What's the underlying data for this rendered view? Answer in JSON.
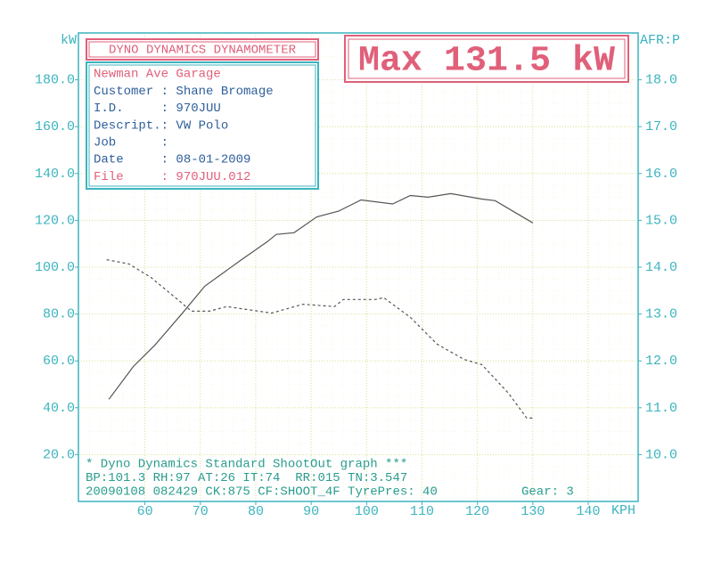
{
  "chart_data": {
    "type": "line",
    "title": "DYNO DYNAMICS DYNAMOMETER",
    "max_label": "Max 131.5 kW",
    "y_label": "kW",
    "y2_label": "AFR:P",
    "x_label": "KPH",
    "info": [
      "Newman Ave Garage",
      "Customer : Shane Bromage",
      "I.D.     : 970JUU",
      "Descript.: VW Polo",
      "Job      :",
      "Date     : 08-01-2009",
      "File     : 970JUU.012"
    ],
    "footer": [
      "* Dyno Dynamics Standard ShootOut graph ***",
      "BP:101.3 RH:97 AT:26 IT:74  RR:015 TN:3.547",
      "20090108 082429 CK:875 CF:SHOOT_4F TyrePres: 40"
    ],
    "gear": "Gear: 3",
    "xlim": [
      48,
      149
    ],
    "xticks": [
      60,
      70,
      80,
      90,
      100,
      110,
      120,
      130,
      140
    ],
    "ylim": [
      0,
      200
    ],
    "yticks": [
      {
        "value": 20,
        "label": "20.0"
      },
      {
        "value": 40,
        "label": "40.0"
      },
      {
        "value": 60,
        "label": "60.0"
      },
      {
        "value": 80,
        "label": "80.0"
      },
      {
        "value": 100,
        "label": "100.0"
      },
      {
        "value": 120,
        "label": "120.0"
      },
      {
        "value": 140,
        "label": "140.0"
      },
      {
        "value": 160,
        "label": "160.0"
      },
      {
        "value": 180,
        "label": "180.0"
      }
    ],
    "y2lim": [
      9,
      19
    ],
    "y2ticks": [
      {
        "value": 10,
        "label": "10.0"
      },
      {
        "value": 11,
        "label": "11.0"
      },
      {
        "value": 12,
        "label": "12.0"
      },
      {
        "value": 13,
        "label": "13.0"
      },
      {
        "value": 14,
        "label": "14.0"
      },
      {
        "value": 15,
        "label": "15.0"
      },
      {
        "value": 16,
        "label": "16.0"
      },
      {
        "value": 17,
        "label": "17.0"
      },
      {
        "value": 18,
        "label": "18.0"
      }
    ],
    "grid": true,
    "series": [
      {
        "color": "#555555",
        "dash": false,
        "x": [
          53.5,
          57.9,
          61.9,
          66.8,
          70.8,
          77.3,
          82.1,
          83.7,
          86.9,
          91,
          95,
          99,
          104.7,
          107.9,
          111.1,
          115.2,
          120.8,
          123.2,
          130
        ],
        "values": [
          43.6,
          57.6,
          67,
          80.5,
          91.9,
          103,
          110.9,
          114,
          114.7,
          121.5,
          124,
          128.7,
          127,
          130.6,
          129.9,
          131.4,
          129.1,
          128.4,
          118.9
        ]
      },
      {
        "color": "#555555",
        "dash": true,
        "axis": "y2",
        "x": [
          53.1,
          57.1,
          61.1,
          65.9,
          68.4,
          71.6,
          74.8,
          80.5,
          82.9,
          88.5,
          94.2,
          95.8,
          101.5,
          103.1,
          107.9,
          112.7,
          117.6,
          120.8,
          125.6,
          128.9,
          130
        ],
        "values": [
          14.16,
          14.07,
          13.78,
          13.31,
          13.06,
          13.06,
          13.16,
          13.06,
          13.02,
          13.21,
          13.16,
          13.31,
          13.31,
          13.35,
          12.93,
          12.36,
          12.03,
          11.92,
          11.31,
          10.78,
          10.78
        ]
      }
    ]
  }
}
